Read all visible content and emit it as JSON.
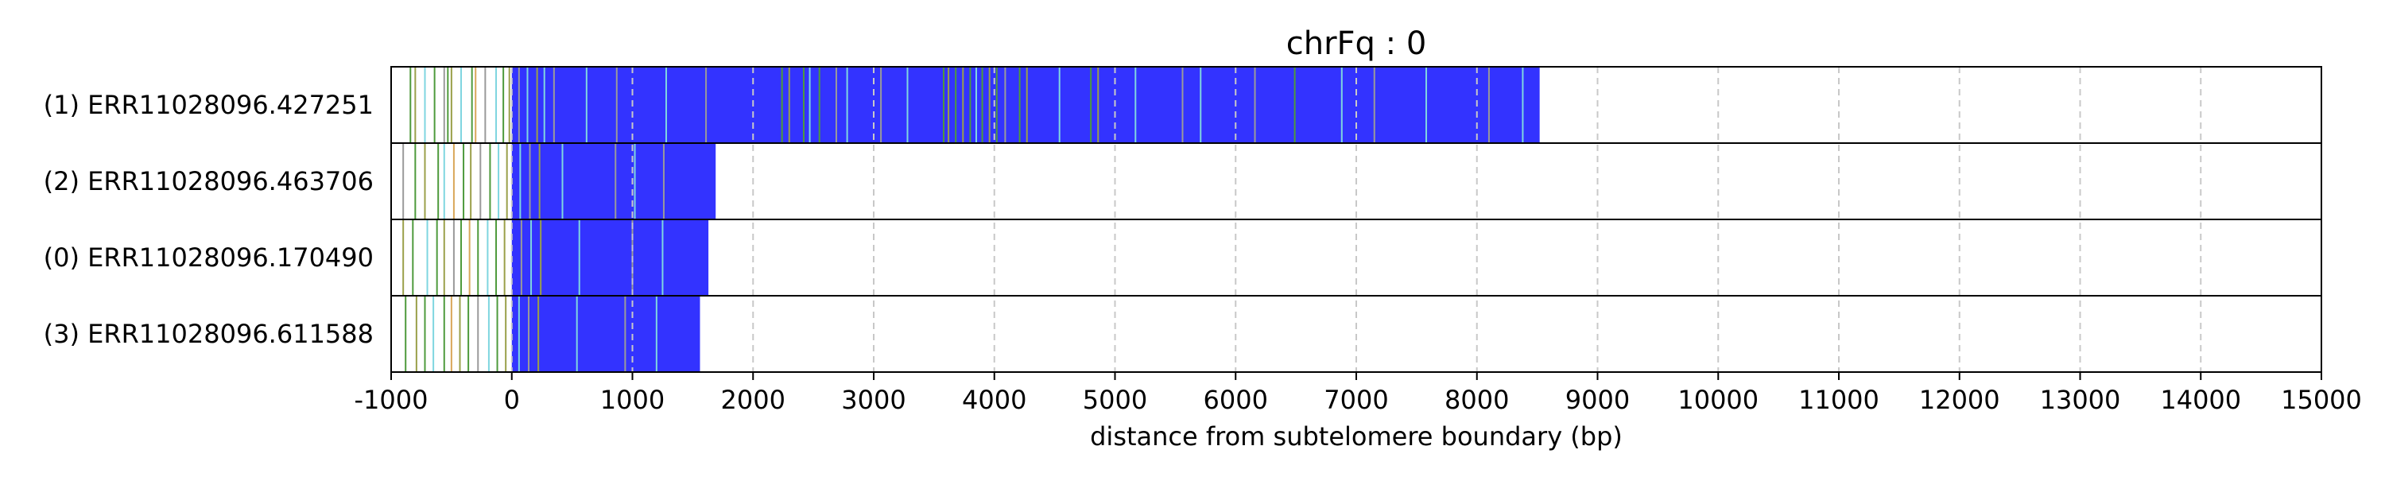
{
  "chart_data": {
    "type": "read-track",
    "title": "chrFq : 0",
    "xlabel": "distance from subtelomere boundary (bp)",
    "xlim": [
      -1000,
      15000
    ],
    "xticks": [
      -1000,
      0,
      1000,
      2000,
      3000,
      4000,
      5000,
      6000,
      7000,
      8000,
      9000,
      10000,
      11000,
      12000,
      13000,
      14000,
      15000
    ],
    "x_gridlines": "dashed grey at every major tick",
    "colors": {
      "read_fill": "#3333ff",
      "frame": "#000000",
      "grid": "#c8c8c8",
      "motif_green": "#4e9a3c",
      "motif_cyan": "#7fd6e0",
      "motif_olive": "#9aa04a",
      "motif_grey": "#9a9a9a",
      "motif_orange": "#d9a75a"
    },
    "rows": [
      {
        "label": "(1) ERR11028096.427251",
        "start": -1000,
        "end": 8520,
        "subtelomere_marks": [
          {
            "x": -840,
            "color": "green"
          },
          {
            "x": -800,
            "color": "olive"
          },
          {
            "x": -720,
            "color": "cyan"
          },
          {
            "x": -640,
            "color": "green"
          },
          {
            "x": -560,
            "color": "grey"
          },
          {
            "x": -530,
            "color": "green"
          },
          {
            "x": -500,
            "color": "olive"
          },
          {
            "x": -420,
            "color": "cyan"
          },
          {
            "x": -330,
            "color": "green"
          },
          {
            "x": -300,
            "color": "orange"
          },
          {
            "x": -220,
            "color": "grey"
          },
          {
            "x": -130,
            "color": "cyan"
          },
          {
            "x": -70,
            "color": "green"
          },
          {
            "x": -20,
            "color": "olive"
          }
        ],
        "in_read_marks": [
          {
            "x": 60,
            "color": "grey"
          },
          {
            "x": 130,
            "color": "cyan"
          },
          {
            "x": 210,
            "color": "olive"
          },
          {
            "x": 270,
            "color": "cyan"
          },
          {
            "x": 350,
            "color": "grey"
          },
          {
            "x": 620,
            "color": "cyan"
          },
          {
            "x": 870,
            "color": "grey"
          },
          {
            "x": 1280,
            "color": "cyan"
          },
          {
            "x": 1610,
            "color": "grey"
          },
          {
            "x": 2240,
            "color": "green"
          },
          {
            "x": 2300,
            "color": "olive"
          },
          {
            "x": 2420,
            "color": "green"
          },
          {
            "x": 2470,
            "color": "cyan"
          },
          {
            "x": 2550,
            "color": "green"
          },
          {
            "x": 2690,
            "color": "grey"
          },
          {
            "x": 2780,
            "color": "cyan"
          },
          {
            "x": 3060,
            "color": "grey"
          },
          {
            "x": 3280,
            "color": "cyan"
          },
          {
            "x": 3580,
            "color": "green"
          },
          {
            "x": 3620,
            "color": "olive"
          },
          {
            "x": 3680,
            "color": "green"
          },
          {
            "x": 3740,
            "color": "olive"
          },
          {
            "x": 3800,
            "color": "green"
          },
          {
            "x": 3850,
            "color": "cyan"
          },
          {
            "x": 3900,
            "color": "green"
          },
          {
            "x": 3960,
            "color": "olive"
          },
          {
            "x": 4020,
            "color": "green"
          },
          {
            "x": 4090,
            "color": "grey"
          },
          {
            "x": 4210,
            "color": "green"
          },
          {
            "x": 4270,
            "color": "olive"
          },
          {
            "x": 4540,
            "color": "cyan"
          },
          {
            "x": 4800,
            "color": "green"
          },
          {
            "x": 4860,
            "color": "olive"
          },
          {
            "x": 5170,
            "color": "cyan"
          },
          {
            "x": 5560,
            "color": "grey"
          },
          {
            "x": 5710,
            "color": "cyan"
          },
          {
            "x": 6160,
            "color": "grey"
          },
          {
            "x": 6490,
            "color": "green"
          },
          {
            "x": 6880,
            "color": "cyan"
          },
          {
            "x": 7150,
            "color": "grey"
          },
          {
            "x": 7580,
            "color": "cyan"
          },
          {
            "x": 8100,
            "color": "grey"
          },
          {
            "x": 8380,
            "color": "cyan"
          }
        ]
      },
      {
        "label": "(2) ERR11028096.463706",
        "start": -1000,
        "end": 1690,
        "subtelomere_marks": [
          {
            "x": -900,
            "color": "grey"
          },
          {
            "x": -800,
            "color": "green"
          },
          {
            "x": -720,
            "color": "olive"
          },
          {
            "x": -610,
            "color": "green"
          },
          {
            "x": -560,
            "color": "cyan"
          },
          {
            "x": -480,
            "color": "orange"
          },
          {
            "x": -400,
            "color": "green"
          },
          {
            "x": -340,
            "color": "olive"
          },
          {
            "x": -260,
            "color": "grey"
          },
          {
            "x": -180,
            "color": "green"
          },
          {
            "x": -110,
            "color": "cyan"
          },
          {
            "x": -40,
            "color": "olive"
          }
        ],
        "in_read_marks": [
          {
            "x": 70,
            "color": "cyan"
          },
          {
            "x": 150,
            "color": "grey"
          },
          {
            "x": 230,
            "color": "olive"
          },
          {
            "x": 420,
            "color": "cyan"
          },
          {
            "x": 860,
            "color": "grey"
          },
          {
            "x": 1020,
            "color": "cyan"
          },
          {
            "x": 1260,
            "color": "grey"
          }
        ]
      },
      {
        "label": "(0) ERR11028096.170490",
        "start": -1000,
        "end": 1630,
        "subtelomere_marks": [
          {
            "x": -900,
            "color": "olive"
          },
          {
            "x": -820,
            "color": "green"
          },
          {
            "x": -700,
            "color": "cyan"
          },
          {
            "x": -620,
            "color": "green"
          },
          {
            "x": -560,
            "color": "olive"
          },
          {
            "x": -480,
            "color": "grey"
          },
          {
            "x": -420,
            "color": "green"
          },
          {
            "x": -350,
            "color": "orange"
          },
          {
            "x": -280,
            "color": "green"
          },
          {
            "x": -200,
            "color": "cyan"
          },
          {
            "x": -130,
            "color": "green"
          },
          {
            "x": -60,
            "color": "olive"
          }
        ],
        "in_read_marks": [
          {
            "x": 80,
            "color": "grey"
          },
          {
            "x": 160,
            "color": "cyan"
          },
          {
            "x": 240,
            "color": "olive"
          },
          {
            "x": 560,
            "color": "cyan"
          },
          {
            "x": 1000,
            "color": "grey"
          },
          {
            "x": 1250,
            "color": "cyan"
          }
        ]
      },
      {
        "label": "(3) ERR11028096.611588",
        "start": -1000,
        "end": 1560,
        "subtelomere_marks": [
          {
            "x": -880,
            "color": "green"
          },
          {
            "x": -790,
            "color": "olive"
          },
          {
            "x": -720,
            "color": "green"
          },
          {
            "x": -650,
            "color": "cyan"
          },
          {
            "x": -560,
            "color": "green"
          },
          {
            "x": -500,
            "color": "orange"
          },
          {
            "x": -430,
            "color": "olive"
          },
          {
            "x": -360,
            "color": "green"
          },
          {
            "x": -280,
            "color": "grey"
          },
          {
            "x": -190,
            "color": "cyan"
          },
          {
            "x": -120,
            "color": "green"
          },
          {
            "x": -50,
            "color": "olive"
          }
        ],
        "in_read_marks": [
          {
            "x": 60,
            "color": "cyan"
          },
          {
            "x": 140,
            "color": "grey"
          },
          {
            "x": 220,
            "color": "olive"
          },
          {
            "x": 540,
            "color": "cyan"
          },
          {
            "x": 940,
            "color": "grey"
          },
          {
            "x": 1200,
            "color": "cyan"
          }
        ]
      }
    ]
  }
}
